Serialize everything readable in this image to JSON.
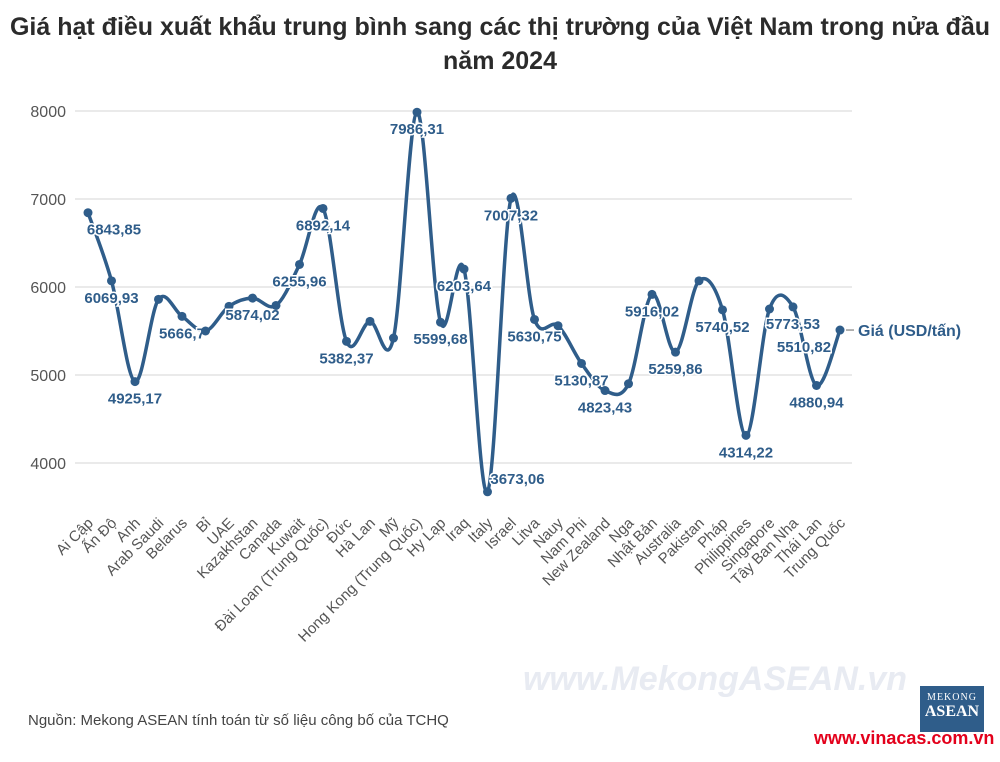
{
  "title": "Giá hạt điều xuất khẩu trung bình sang các thị trường của Việt Nam trong nửa đầu năm 2024",
  "source": "Nguồn: Mekong ASEAN tính toán từ số liệu công bố của TCHQ",
  "watermark": "www.MekongASEAN.vn",
  "logo": {
    "line1": "MEKONG",
    "line2": "ASEAN"
  },
  "site": "www.vinacas.com.vn",
  "colors": {
    "line": "#2f5d8a",
    "grid": "#e4e4e4",
    "text": "#444444"
  },
  "chart_data": {
    "type": "line",
    "title": "Giá hạt điều xuất khẩu trung bình sang các thị trường của Việt Nam trong nửa đầu năm 2024",
    "xlabel": "",
    "ylabel": "",
    "ylim": [
      3500,
      8000
    ],
    "yticks": [
      4000,
      5000,
      6000,
      7000,
      8000
    ],
    "grid": true,
    "categories": [
      "Ai Cập",
      "Ấn Độ",
      "Anh",
      "Arab Saudi",
      "Belarus",
      "Bỉ",
      "UAE",
      "Kazakhstan",
      "Canada",
      "Kuwait",
      "Đài Loan (Trung Quốc)",
      "Đức",
      "Hà Lan",
      "Mỹ",
      "Hong Kong (Trung Quốc)",
      "Hy Lạp",
      "Iraq",
      "Italy",
      "Israel",
      "Litva",
      "Nauy",
      "Nam Phi",
      "New Zealand",
      "Nga",
      "Nhật Bản",
      "Australia",
      "Pakistan",
      "Pháp",
      "Philippines",
      "Singapore",
      "Tây Ban Nha",
      "Thái Lan",
      "Trung Quốc"
    ],
    "series": [
      {
        "name": "Giá (USD/tấn)",
        "values": [
          6843.85,
          6069.93,
          4925.17,
          5860,
          5666.7,
          5500,
          5780,
          5874.02,
          5790,
          6255.96,
          6892.14,
          5382.37,
          5610,
          5420,
          7986.31,
          5599.68,
          6203.64,
          3673.06,
          7007.32,
          5630.75,
          5560,
          5130.87,
          4823.43,
          4900,
          5916.02,
          5259.86,
          6070,
          5740.52,
          4314.22,
          5750,
          5773.53,
          4880.94,
          5510.82
        ],
        "data_labels": [
          "6843,85",
          "6069,93",
          "4925,17",
          "",
          "5666,7",
          "",
          "",
          "5874,02",
          "",
          "6255,96",
          "6892,14",
          "5382,37",
          "",
          "",
          "7986,31",
          "5599,68",
          "6203,64",
          "3673,06",
          "7007,32",
          "5630,75",
          "",
          "5130,87",
          "4823,43",
          "",
          "5916,02",
          "5259,86",
          "",
          "5740,52",
          "4314,22",
          "",
          "5773,53",
          "4880,94",
          "5510,82"
        ]
      }
    ],
    "legend": "right (end of line)"
  }
}
